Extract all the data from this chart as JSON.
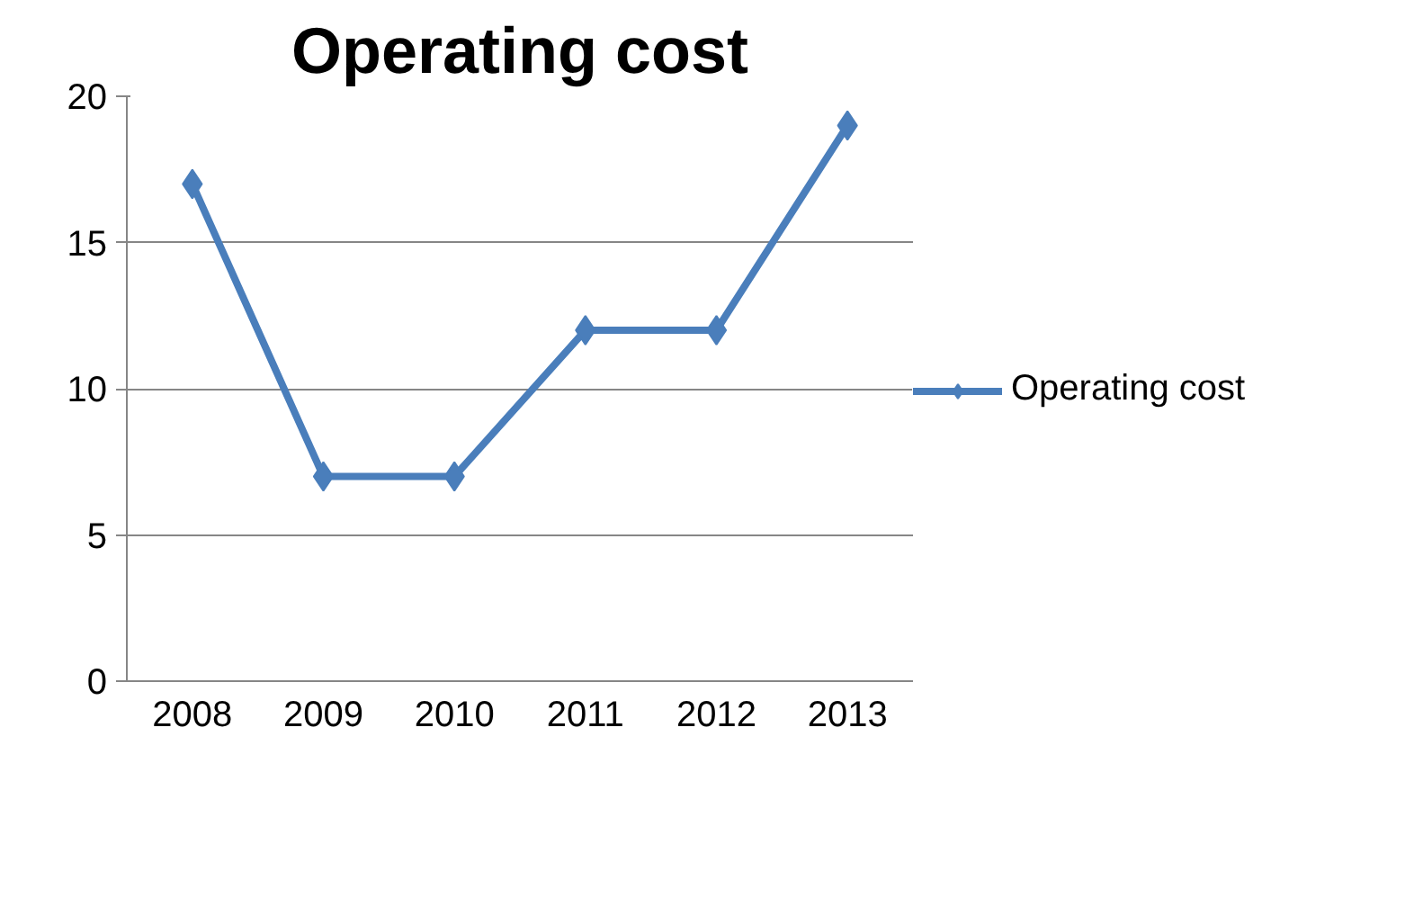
{
  "chart_data": {
    "type": "line",
    "title": "Operating cost",
    "categories": [
      "2008",
      "2009",
      "2010",
      "2011",
      "2012",
      "2013"
    ],
    "series": [
      {
        "name": "Operating cost",
        "color": "#4a7ebb",
        "values": [
          17,
          7,
          7,
          12,
          12,
          19
        ]
      }
    ],
    "ylim": [
      0,
      20
    ],
    "yticks": [
      0,
      5,
      10,
      15,
      20
    ],
    "grid": "y",
    "legend": "right",
    "marker": "diamond",
    "line_style": "solid"
  }
}
